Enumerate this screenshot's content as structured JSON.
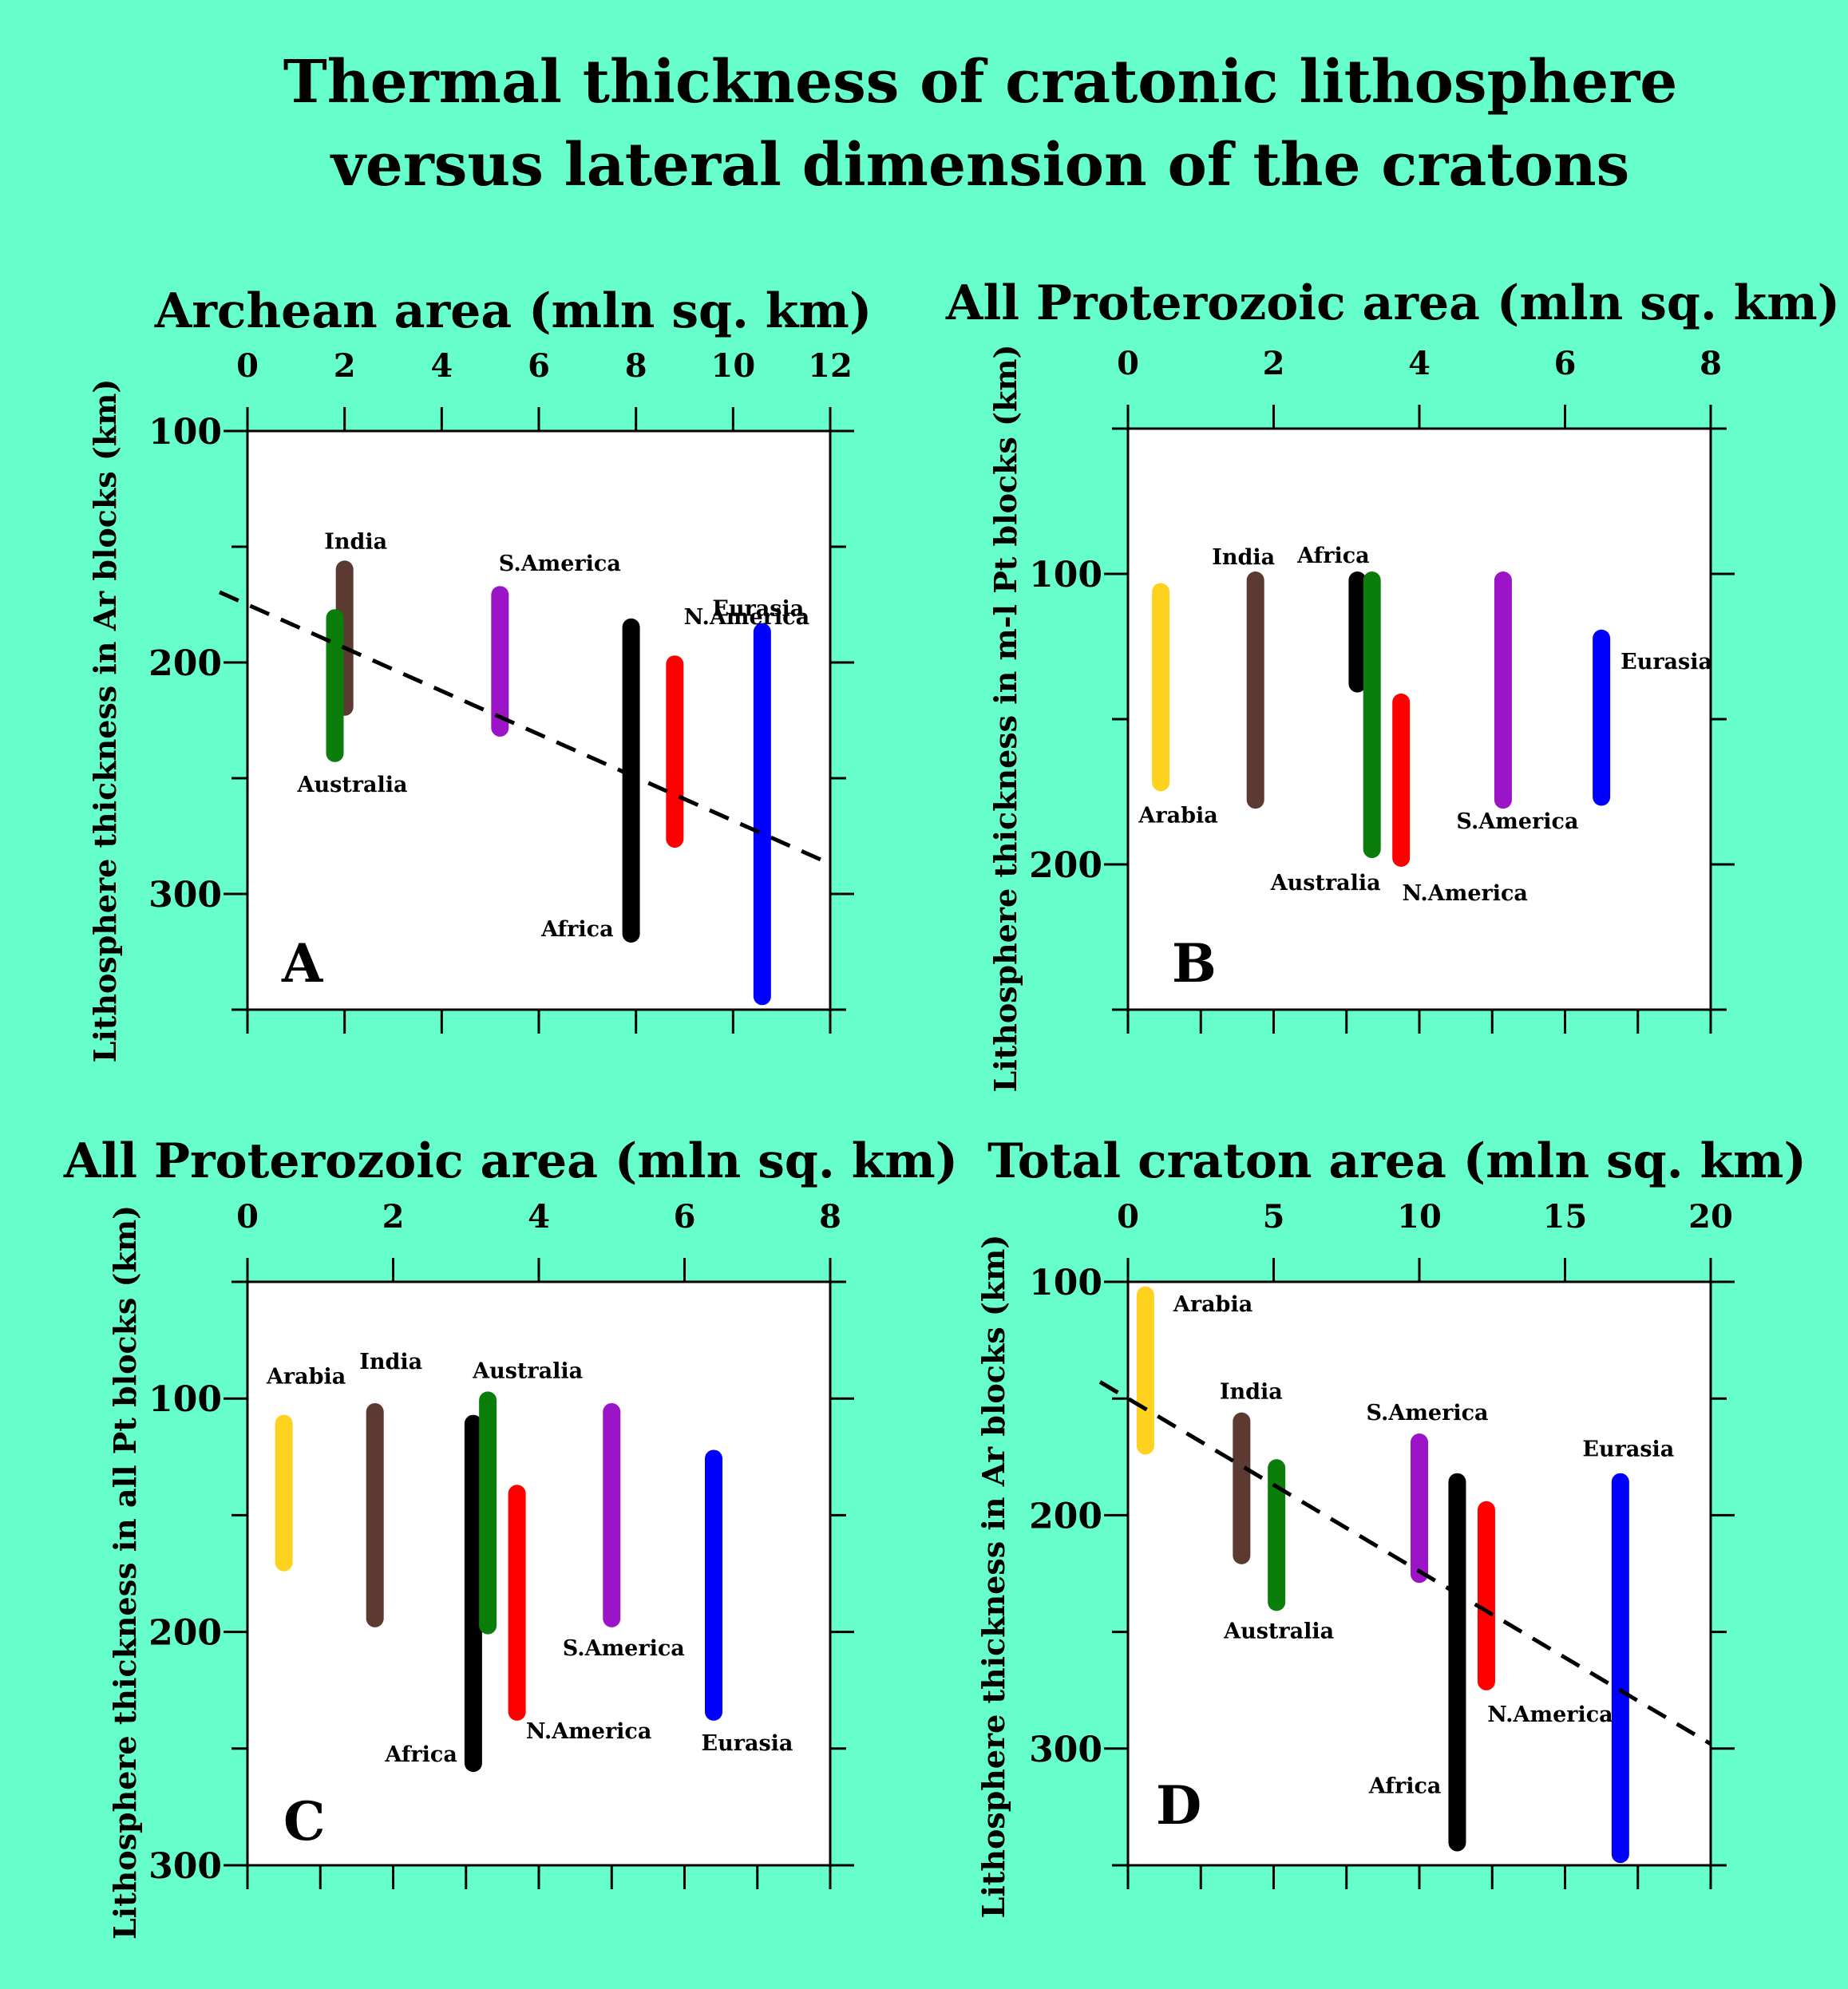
{
  "title": {
    "line1": "Thermal thickness of cratonic lithosphere",
    "line2": "versus lateral dimension of the cratons"
  },
  "colors": {
    "background": "#66ffcc",
    "Arabia": "#ffd21f",
    "India": "#5c3a32",
    "Australia": "#0a7d0a",
    "S.America": "#9c14c8",
    "Africa": "#000000",
    "N.America": "#ff0000",
    "Eurasia": "#0000ff"
  },
  "chart_data": [
    {
      "type": "range-bar",
      "letter": "A",
      "title": "Archean area (mln sq. km)",
      "ylabel": "Lithosphere  thickness in Ar blocks (km)",
      "xlim": [
        0,
        12
      ],
      "xticks": [
        0,
        2,
        4,
        6,
        8,
        10,
        12
      ],
      "xtick_labels": [
        "0",
        "2",
        "4",
        "6",
        "8",
        "10",
        "12"
      ],
      "ylim": [
        100,
        350
      ],
      "yticks": [
        100,
        200,
        300
      ],
      "yticks_labels": [
        "100",
        "200",
        "300"
      ],
      "trend_line": {
        "x": [
          0,
          12
        ],
        "y": [
          175,
          287
        ]
      },
      "series": [
        {
          "name": "India",
          "x": 2.0,
          "y_top": 157,
          "y_bottom": 222
        },
        {
          "name": "Australia",
          "x": 1.8,
          "y_top": 178,
          "y_bottom": 242
        },
        {
          "name": "S.America",
          "x": 5.2,
          "y_top": 168,
          "y_bottom": 231
        },
        {
          "name": "Africa",
          "x": 7.9,
          "y_top": 182,
          "y_bottom": 320
        },
        {
          "name": "N.America",
          "x": 8.8,
          "y_top": 198,
          "y_bottom": 279
        },
        {
          "name": "Eurasia",
          "x": 10.6,
          "y_top": 184,
          "y_bottom": 347
        }
      ]
    },
    {
      "type": "range-bar",
      "letter": "B",
      "title": "All Proterozoic area (mln sq. km)",
      "ylabel": "Lithosphere thickness in m-l Pt blocks (km)",
      "xlim": [
        0,
        8
      ],
      "xticks": [
        0,
        2,
        4,
        6,
        8
      ],
      "xtick_labels": [
        "0",
        "2",
        "4",
        "6",
        "8"
      ],
      "ylim": [
        50,
        250
      ],
      "yticks": [
        100,
        200
      ],
      "yticks_labels": [
        "100",
        "200"
      ],
      "series": [
        {
          "name": "Arabia",
          "x": 0.45,
          "y_top": 104,
          "y_bottom": 174
        },
        {
          "name": "India",
          "x": 1.75,
          "y_top": 100,
          "y_bottom": 180
        },
        {
          "name": "Africa",
          "x": 3.15,
          "y_top": 100,
          "y_bottom": 140
        },
        {
          "name": "Australia",
          "x": 3.35,
          "y_top": 100,
          "y_bottom": 197
        },
        {
          "name": "N.America",
          "x": 3.75,
          "y_top": 142,
          "y_bottom": 200
        },
        {
          "name": "S.America",
          "x": 5.15,
          "y_top": 100,
          "y_bottom": 180
        },
        {
          "name": "Eurasia",
          "x": 6.5,
          "y_top": 120,
          "y_bottom": 179
        }
      ]
    },
    {
      "type": "range-bar",
      "letter": "C",
      "title": "All Proterozoic area (mln sq. km)",
      "ylabel": "Lithosphere thickness in all Pt blocks (km)",
      "xlim": [
        0,
        8
      ],
      "xticks": [
        0,
        2,
        4,
        6,
        8
      ],
      "xtick_labels": [
        "0",
        "2",
        "4",
        "6",
        "8"
      ],
      "ylim": [
        50,
        300
      ],
      "yticks": [
        100,
        200,
        300
      ],
      "yticks_labels": [
        "100",
        "200",
        "300"
      ],
      "series": [
        {
          "name": "Arabia",
          "x": 0.5,
          "y_top": 108,
          "y_bottom": 173
        },
        {
          "name": "India",
          "x": 1.75,
          "y_top": 103,
          "y_bottom": 197
        },
        {
          "name": "Africa",
          "x": 3.1,
          "y_top": 108,
          "y_bottom": 259
        },
        {
          "name": "Australia",
          "x": 3.3,
          "y_top": 98,
          "y_bottom": 200
        },
        {
          "name": "N.America",
          "x": 3.7,
          "y_top": 138,
          "y_bottom": 237
        },
        {
          "name": "S.America",
          "x": 5.0,
          "y_top": 103,
          "y_bottom": 197
        },
        {
          "name": "Eurasia",
          "x": 6.4,
          "y_top": 123,
          "y_bottom": 237
        }
      ]
    },
    {
      "type": "range-bar",
      "letter": "D",
      "title": "Total craton area (mln sq. km)",
      "ylabel": "Lithosphere  thickness in Ar blocks (km)",
      "xlim": [
        0,
        20
      ],
      "xticks": [
        0,
        5,
        10,
        15,
        20
      ],
      "xtick_labels": [
        "0",
        "5",
        "10",
        "15",
        "20"
      ],
      "ylim": [
        100,
        350
      ],
      "yticks": [
        100,
        200,
        300
      ],
      "yticks_labels": [
        "100",
        "200",
        "300"
      ],
      "trend_line": {
        "x": [
          0,
          20
        ],
        "y": [
          150,
          298
        ]
      },
      "series": [
        {
          "name": "Arabia",
          "x": 0.6,
          "y_top": 103,
          "y_bottom": 173
        },
        {
          "name": "India",
          "x": 3.9,
          "y_top": 157,
          "y_bottom": 220
        },
        {
          "name": "Australia",
          "x": 5.1,
          "y_top": 177,
          "y_bottom": 240
        },
        {
          "name": "S.America",
          "x": 10.0,
          "y_top": 166,
          "y_bottom": 228
        },
        {
          "name": "Africa",
          "x": 11.3,
          "y_top": 183,
          "y_bottom": 343
        },
        {
          "name": "N.America",
          "x": 12.3,
          "y_top": 195,
          "y_bottom": 274
        },
        {
          "name": "Eurasia",
          "x": 16.9,
          "y_top": 183,
          "y_bottom": 348
        }
      ]
    }
  ]
}
